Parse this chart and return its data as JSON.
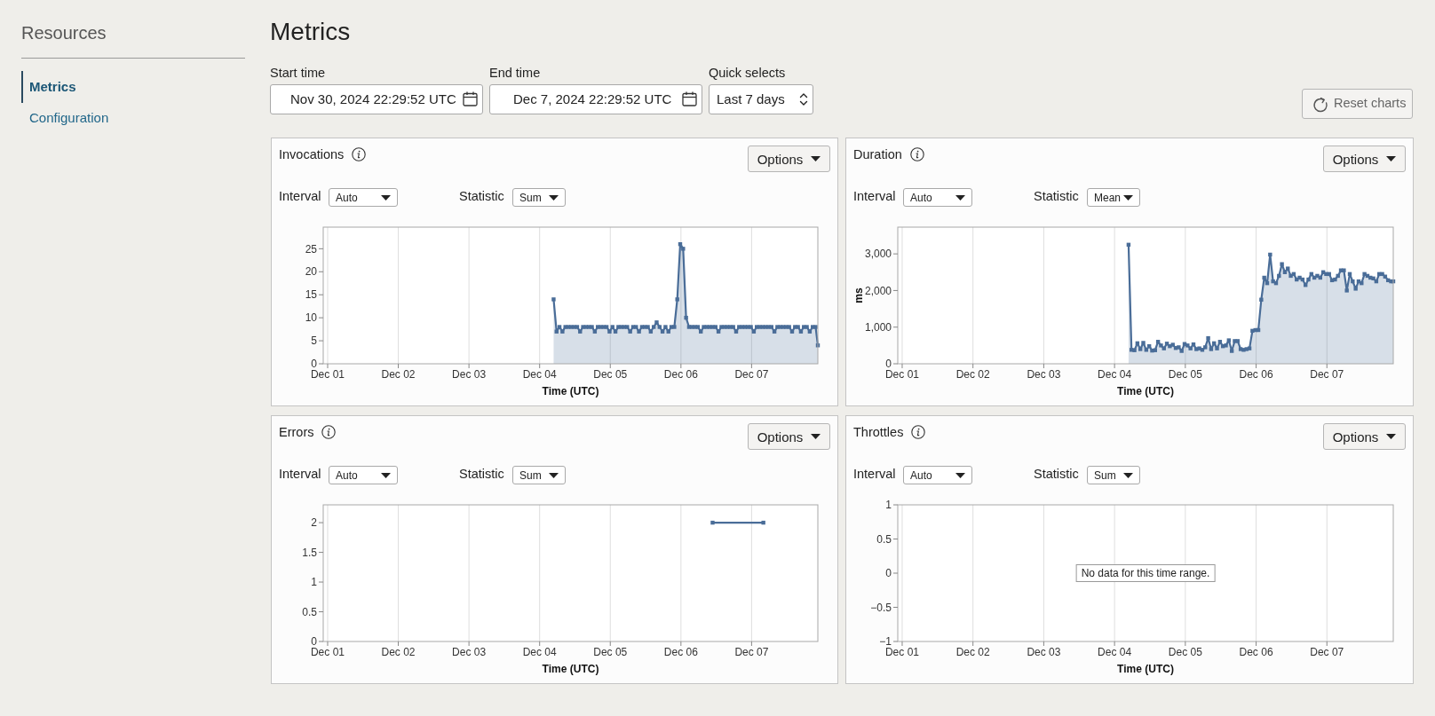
{
  "chart_data": [
    {
      "type": "other",
      "title": "Metrics",
      "annotations": [
        "Resources",
        "Metrics",
        "Configuration",
        "Start time",
        "Nov 30, 2024 22:29:52 UTC",
        "End time",
        "Dec 7, 2024 22:29:52 UTC",
        "Quick selects",
        "Last 7 days",
        "Reset charts"
      ]
    },
    {
      "type": "area",
      "title": "Invocations",
      "annotations": [
        "Interval",
        "Auto",
        "Statistic",
        "Sum",
        "Options"
      ],
      "xlabel": "Time (UTC)",
      "x": [
        "2024-12-04T04:45",
        "2024-12-04T05:45",
        "2024-12-04T06:45",
        "2024-12-04T07:45",
        "2024-12-04T08:45",
        "2024-12-04T09:45",
        "2024-12-04T10:45",
        "2024-12-04T11:45",
        "2024-12-04T12:45",
        "2024-12-04T13:45",
        "2024-12-04T14:45",
        "2024-12-04T15:45",
        "2024-12-04T16:45",
        "2024-12-04T17:45",
        "2024-12-04T18:45",
        "2024-12-04T19:45",
        "2024-12-04T20:45",
        "2024-12-04T21:45",
        "2024-12-04T22:45",
        "2024-12-04T23:45",
        "2024-12-05T00:45",
        "2024-12-05T01:45",
        "2024-12-05T02:45",
        "2024-12-05T03:45",
        "2024-12-05T04:45",
        "2024-12-05T05:45",
        "2024-12-05T06:45",
        "2024-12-05T07:45",
        "2024-12-05T08:45",
        "2024-12-05T09:45",
        "2024-12-05T10:45",
        "2024-12-05T11:45",
        "2024-12-05T12:45",
        "2024-12-05T13:45",
        "2024-12-05T14:45",
        "2024-12-05T15:45",
        "2024-12-05T16:45",
        "2024-12-05T17:45",
        "2024-12-05T18:45",
        "2024-12-05T19:45",
        "2024-12-05T20:45",
        "2024-12-05T21:45",
        "2024-12-05T22:45",
        "2024-12-05T23:45",
        "2024-12-06T00:45",
        "2024-12-06T01:45",
        "2024-12-06T02:45",
        "2024-12-06T03:45",
        "2024-12-06T04:45",
        "2024-12-06T05:45",
        "2024-12-06T06:45",
        "2024-12-06T07:45",
        "2024-12-06T08:45",
        "2024-12-06T09:45",
        "2024-12-06T10:45",
        "2024-12-06T11:45",
        "2024-12-06T12:45",
        "2024-12-06T13:45",
        "2024-12-06T14:45",
        "2024-12-06T15:45",
        "2024-12-06T16:45",
        "2024-12-06T17:45",
        "2024-12-06T18:45",
        "2024-12-06T19:45",
        "2024-12-06T20:45",
        "2024-12-06T21:45",
        "2024-12-06T22:45",
        "2024-12-06T23:45",
        "2024-12-07T00:45",
        "2024-12-07T01:45",
        "2024-12-07T02:45",
        "2024-12-07T03:45",
        "2024-12-07T04:45",
        "2024-12-07T05:45",
        "2024-12-07T06:45",
        "2024-12-07T07:45",
        "2024-12-07T08:45",
        "2024-12-07T09:45",
        "2024-12-07T10:45",
        "2024-12-07T11:45",
        "2024-12-07T12:45",
        "2024-12-07T13:45",
        "2024-12-07T14:45",
        "2024-12-07T15:45",
        "2024-12-07T16:45",
        "2024-12-07T17:45",
        "2024-12-07T18:45",
        "2024-12-07T19:45",
        "2024-12-07T20:45",
        "2024-12-07T21:45",
        "2024-12-07T22:30"
      ],
      "series": [
        {
          "color": "#4a6d98",
          "values": [
            14,
            7,
            8,
            7,
            8,
            8,
            8,
            8,
            8,
            7,
            8,
            8,
            8,
            8,
            7,
            8,
            8,
            8,
            8,
            7,
            8,
            7,
            8,
            8,
            8,
            8,
            7,
            8,
            8,
            7,
            8,
            8,
            8,
            7,
            8,
            9,
            8,
            7,
            8,
            7,
            8,
            8,
            14,
            26,
            25,
            10,
            8,
            8,
            8,
            8,
            7,
            8,
            8,
            8,
            8,
            8,
            7,
            8,
            8,
            8,
            8,
            8,
            7,
            8,
            8,
            8,
            8,
            8,
            7,
            8,
            8,
            8,
            8,
            8,
            8,
            7,
            8,
            8,
            8,
            8,
            8,
            7,
            8,
            8,
            7,
            8,
            8,
            7,
            8,
            8,
            4
          ]
        }
      ],
      "xlim": [
        "2024-11-30T22:30",
        "2024-12-07T22:30"
      ],
      "xticks": [
        {
          "value": "2024-12-01",
          "label": "Dec 01"
        },
        {
          "value": "2024-12-02",
          "label": "Dec 02"
        },
        {
          "value": "2024-12-03",
          "label": "Dec 03"
        },
        {
          "value": "2024-12-04",
          "label": "Dec 04"
        },
        {
          "value": "2024-12-05",
          "label": "Dec 05"
        },
        {
          "value": "2024-12-06",
          "label": "Dec 06"
        },
        {
          "value": "2024-12-07",
          "label": "Dec 07"
        }
      ],
      "ylim": [
        0,
        29.7
      ],
      "yticks": [
        0,
        5,
        10,
        15,
        20,
        25
      ],
      "grid": "x",
      "marker": "square"
    },
    {
      "type": "area",
      "title": "Duration",
      "annotations": [
        "Interval",
        "Auto",
        "Statistic",
        "Mean",
        "Options"
      ],
      "xlabel": "Time (UTC)",
      "ylabel": "ms",
      "x": [
        "2024-12-04T04:45",
        "2024-12-04T05:45",
        "2024-12-04T06:45",
        "2024-12-04T07:45",
        "2024-12-04T08:45",
        "2024-12-04T09:45",
        "2024-12-04T10:45",
        "2024-12-04T11:45",
        "2024-12-04T12:45",
        "2024-12-04T13:45",
        "2024-12-04T14:45",
        "2024-12-04T15:45",
        "2024-12-04T16:45",
        "2024-12-04T17:45",
        "2024-12-04T18:45",
        "2024-12-04T19:45",
        "2024-12-04T20:45",
        "2024-12-04T21:45",
        "2024-12-04T22:45",
        "2024-12-04T23:45",
        "2024-12-05T00:45",
        "2024-12-05T01:45",
        "2024-12-05T02:45",
        "2024-12-05T03:45",
        "2024-12-05T04:45",
        "2024-12-05T05:45",
        "2024-12-05T06:45",
        "2024-12-05T07:45",
        "2024-12-05T08:45",
        "2024-12-05T09:45",
        "2024-12-05T10:45",
        "2024-12-05T11:45",
        "2024-12-05T12:45",
        "2024-12-05T13:45",
        "2024-12-05T14:45",
        "2024-12-05T15:45",
        "2024-12-05T16:45",
        "2024-12-05T17:45",
        "2024-12-05T18:45",
        "2024-12-05T19:45",
        "2024-12-05T20:45",
        "2024-12-05T21:45",
        "2024-12-05T22:45",
        "2024-12-05T23:45",
        "2024-12-06T00:45",
        "2024-12-06T01:45",
        "2024-12-06T02:45",
        "2024-12-06T03:45",
        "2024-12-06T04:45",
        "2024-12-06T05:45",
        "2024-12-06T06:45",
        "2024-12-06T07:45",
        "2024-12-06T08:45",
        "2024-12-06T09:45",
        "2024-12-06T10:45",
        "2024-12-06T11:45",
        "2024-12-06T12:45",
        "2024-12-06T13:45",
        "2024-12-06T14:45",
        "2024-12-06T15:45",
        "2024-12-06T16:45",
        "2024-12-06T17:45",
        "2024-12-06T18:45",
        "2024-12-06T19:45",
        "2024-12-06T20:45",
        "2024-12-06T21:45",
        "2024-12-06T22:45",
        "2024-12-06T23:45",
        "2024-12-07T00:45",
        "2024-12-07T01:45",
        "2024-12-07T02:45",
        "2024-12-07T03:45",
        "2024-12-07T04:45",
        "2024-12-07T05:45",
        "2024-12-07T06:45",
        "2024-12-07T07:45",
        "2024-12-07T08:45",
        "2024-12-07T09:45",
        "2024-12-07T10:45",
        "2024-12-07T11:45",
        "2024-12-07T12:45",
        "2024-12-07T13:45",
        "2024-12-07T14:45",
        "2024-12-07T15:45",
        "2024-12-07T16:45",
        "2024-12-07T17:45",
        "2024-12-07T18:45",
        "2024-12-07T19:45",
        "2024-12-07T20:45",
        "2024-12-07T21:45",
        "2024-12-07T22:30"
      ],
      "series": [
        {
          "color": "#4a6d98",
          "values": [
            3250,
            380,
            370,
            560,
            400,
            570,
            380,
            480,
            360,
            370,
            600,
            500,
            420,
            550,
            480,
            520,
            430,
            450,
            350,
            540,
            500,
            420,
            530,
            400,
            420,
            380,
            450,
            700,
            400,
            560,
            420,
            600,
            480,
            500,
            640,
            350,
            620,
            620,
            400,
            380,
            400,
            420,
            900,
            920,
            920,
            1750,
            2350,
            2200,
            2980,
            2250,
            2200,
            2400,
            2720,
            2500,
            2600,
            2400,
            2450,
            2300,
            2350,
            2300,
            2150,
            2300,
            2450,
            2350,
            2400,
            2350,
            2500,
            2450,
            2450,
            2280,
            2300,
            2400,
            2550,
            2550,
            2000,
            2450,
            2250,
            2050,
            2250,
            2200,
            2450,
            2400,
            2350,
            2330,
            2250,
            2450,
            2450,
            2380,
            2280,
            2250,
            2250
          ]
        }
      ],
      "xlim": [
        "2024-11-30T22:30",
        "2024-12-07T22:30"
      ],
      "xticks": [
        {
          "value": "2024-12-01",
          "label": "Dec 01"
        },
        {
          "value": "2024-12-02",
          "label": "Dec 02"
        },
        {
          "value": "2024-12-03",
          "label": "Dec 03"
        },
        {
          "value": "2024-12-04",
          "label": "Dec 04"
        },
        {
          "value": "2024-12-05",
          "label": "Dec 05"
        },
        {
          "value": "2024-12-06",
          "label": "Dec 06"
        },
        {
          "value": "2024-12-07",
          "label": "Dec 07"
        }
      ],
      "ylim": [
        0,
        3730
      ],
      "yticks": [
        0,
        {
          "value": 1000,
          "label": "1,000"
        },
        {
          "value": 2000,
          "label": "2,000"
        },
        {
          "value": 3000,
          "label": "3,000"
        }
      ],
      "grid": "x",
      "marker": "square"
    },
    {
      "type": "line",
      "title": "Errors",
      "annotations": [
        "Interval",
        "Auto",
        "Statistic",
        "Sum",
        "Options"
      ],
      "xlabel": "Time (UTC)",
      "x": [
        "2024-12-06T10:45",
        "2024-12-07T04:00"
      ],
      "series": [
        {
          "color": "#4a6d98",
          "values": [
            2,
            2
          ]
        }
      ],
      "xlim": [
        "2024-11-30T22:30",
        "2024-12-07T22:30"
      ],
      "xticks": [
        {
          "value": "2024-12-01",
          "label": "Dec 01"
        },
        {
          "value": "2024-12-02",
          "label": "Dec 02"
        },
        {
          "value": "2024-12-03",
          "label": "Dec 03"
        },
        {
          "value": "2024-12-04",
          "label": "Dec 04"
        },
        {
          "value": "2024-12-05",
          "label": "Dec 05"
        },
        {
          "value": "2024-12-06",
          "label": "Dec 06"
        },
        {
          "value": "2024-12-07",
          "label": "Dec 07"
        }
      ],
      "ylim": [
        0,
        2.3
      ],
      "yticks": [
        0,
        0.5,
        1,
        1.5,
        2
      ],
      "grid": "x",
      "marker": "square"
    },
    {
      "type": "line",
      "title": "Throttles",
      "annotations": [
        "Interval",
        "Auto",
        "Statistic",
        "Sum",
        "Options",
        "No data for this time range."
      ],
      "xlabel": "Time (UTC)",
      "xlim": [
        "2024-11-30T22:30",
        "2024-12-07T22:30"
      ],
      "xticks": [
        {
          "value": "2024-12-01",
          "label": "Dec 01"
        },
        {
          "value": "2024-12-02",
          "label": "Dec 02"
        },
        {
          "value": "2024-12-03",
          "label": "Dec 03"
        },
        {
          "value": "2024-12-04",
          "label": "Dec 04"
        },
        {
          "value": "2024-12-05",
          "label": "Dec 05"
        },
        {
          "value": "2024-12-06",
          "label": "Dec 06"
        },
        {
          "value": "2024-12-07",
          "label": "Dec 07"
        }
      ],
      "ylim": [
        -1,
        1
      ],
      "yticks": [
        {
          "value": -1,
          "label": "−1"
        },
        {
          "value": -0.5,
          "label": "−0.5"
        },
        0,
        0.5,
        1
      ],
      "grid": "x"
    }
  ]
}
